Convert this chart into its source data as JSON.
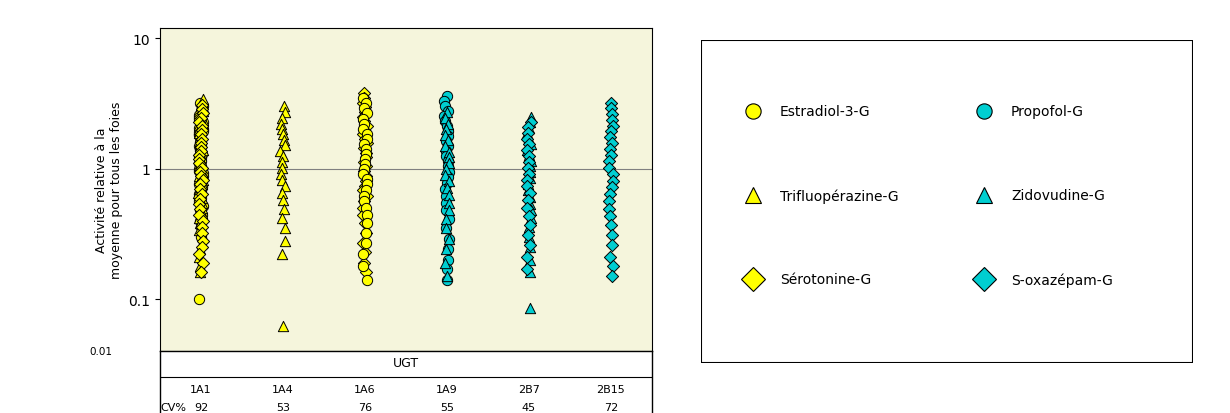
{
  "background_color": "#F5F5DC",
  "ylabel": "Activité relative à la\nmoyenne pour tous les foies",
  "ylim": [
    0.04,
    12
  ],
  "ugt_labels": [
    "1A1",
    "1A4",
    "1A6",
    "1A9",
    "2B7",
    "2B15"
  ],
  "cv_values": [
    92,
    53,
    76,
    55,
    45,
    72
  ],
  "x_positions": [
    1,
    2,
    3,
    4,
    5,
    6
  ],
  "hline_y": 1.0,
  "col1_yellow_circle": [
    3.2,
    3.05,
    2.9,
    2.75,
    2.6,
    2.5,
    2.4,
    2.3,
    2.2,
    2.1,
    2.05,
    2.0,
    1.95,
    1.9,
    1.85,
    1.8,
    1.75,
    1.7,
    1.65,
    1.6,
    1.55,
    1.5,
    1.45,
    1.4,
    1.35,
    1.3,
    1.25,
    1.2,
    1.15,
    1.1,
    1.05,
    1.0,
    0.96,
    0.92,
    0.88,
    0.84,
    0.8,
    0.76,
    0.72,
    0.68,
    0.64,
    0.6,
    0.56,
    0.52,
    0.48,
    0.44,
    0.4,
    0.36,
    0.3,
    0.1
  ],
  "col1_yellow_tri": [
    3.4,
    3.15,
    2.95,
    2.75,
    2.55,
    2.35,
    2.18,
    2.02,
    1.88,
    1.75,
    1.62,
    1.5,
    1.4,
    1.3,
    1.2,
    1.11,
    1.03,
    0.95,
    0.88,
    0.82,
    0.76,
    0.7,
    0.65,
    0.6,
    0.55,
    0.5,
    0.46,
    0.42,
    0.38,
    0.34,
    0.3,
    0.27,
    0.24,
    0.21,
    0.18,
    0.16
  ],
  "col1_yellow_dia": [
    3.1,
    2.85,
    2.65,
    2.45,
    2.28,
    2.12,
    1.97,
    1.83,
    1.7,
    1.58,
    1.47,
    1.37,
    1.27,
    1.18,
    1.1,
    1.02,
    0.95,
    0.88,
    0.82,
    0.76,
    0.7,
    0.64,
    0.59,
    0.54,
    0.49,
    0.44,
    0.4,
    0.36,
    0.32,
    0.28,
    0.25,
    0.22,
    0.19,
    0.16
  ],
  "col2_yellow_tri": [
    3.0,
    2.7,
    2.45,
    2.22,
    2.02,
    1.83,
    1.66,
    1.51,
    1.37,
    1.24,
    1.12,
    1.01,
    0.91,
    0.82,
    0.73,
    0.65,
    0.57,
    0.49,
    0.42,
    0.35,
    0.28,
    0.22,
    0.062
  ],
  "col3_yellow_dia": [
    3.8,
    3.5,
    3.2,
    2.95,
    2.72,
    2.51,
    2.32,
    2.14,
    1.98,
    1.83,
    1.69,
    1.56,
    1.44,
    1.33,
    1.23,
    1.13,
    1.04,
    0.96,
    0.88,
    0.81,
    0.74,
    0.68,
    0.62,
    0.56,
    0.5,
    0.44,
    0.38,
    0.32,
    0.27,
    0.23,
    0.19,
    0.16
  ],
  "col3_yellow_circle": [
    3.5,
    3.2,
    2.9,
    2.65,
    2.42,
    2.21,
    2.02,
    1.85,
    1.69,
    1.55,
    1.42,
    1.3,
    1.19,
    1.09,
    1.0,
    0.91,
    0.83,
    0.76,
    0.69,
    0.62,
    0.56,
    0.5,
    0.44,
    0.38,
    0.32,
    0.27,
    0.22,
    0.18,
    0.14
  ],
  "col4_cyan_circle": [
    3.6,
    3.3,
    3.0,
    2.75,
    2.52,
    2.31,
    2.12,
    1.95,
    1.79,
    1.64,
    1.5,
    1.37,
    1.25,
    1.14,
    1.04,
    0.95,
    0.86,
    0.78,
    0.7,
    0.62,
    0.55,
    0.48,
    0.41,
    0.35,
    0.29,
    0.24,
    0.2,
    0.17,
    0.14
  ],
  "col4_cyan_tri": [
    2.7,
    2.45,
    2.22,
    2.01,
    1.82,
    1.65,
    1.49,
    1.35,
    1.22,
    1.1,
    0.99,
    0.89,
    0.8,
    0.71,
    0.63,
    0.55,
    0.48,
    0.41,
    0.35,
    0.29,
    0.24,
    0.19,
    0.15
  ],
  "col5_cyan_tri": [
    2.5,
    2.27,
    2.06,
    1.87,
    1.7,
    1.54,
    1.4,
    1.27,
    1.15,
    1.04,
    0.94,
    0.85,
    0.76,
    0.68,
    0.61,
    0.54,
    0.48,
    0.42,
    0.36,
    0.3,
    0.25,
    0.2,
    0.16,
    0.085
  ],
  "col5_cyan_dia": [
    2.3,
    2.08,
    1.88,
    1.7,
    1.54,
    1.39,
    1.25,
    1.13,
    1.02,
    0.91,
    0.82,
    0.73,
    0.65,
    0.57,
    0.5,
    0.43,
    0.37,
    0.31,
    0.26,
    0.21,
    0.17
  ],
  "col6_cyan_dia": [
    3.2,
    2.9,
    2.62,
    2.37,
    2.14,
    1.93,
    1.74,
    1.57,
    1.41,
    1.27,
    1.14,
    1.02,
    0.91,
    0.81,
    0.72,
    0.64,
    0.56,
    0.49,
    0.43,
    0.37,
    0.31,
    0.26,
    0.21,
    0.18,
    0.15
  ],
  "yellow": "#FFFF00",
  "cyan": "#00CED1",
  "edge": "#000000",
  "legend_entries": [
    {
      "label": "Estradiol-3-G",
      "color": "#FFFF00",
      "marker": "o",
      "col": 0,
      "row": 0
    },
    {
      "label": "Propofol-G",
      "color": "#00CED1",
      "marker": "o",
      "col": 1,
      "row": 0
    },
    {
      "label": "Trifluopérazine-G",
      "color": "#FFFF00",
      "marker": "^",
      "col": 0,
      "row": 1
    },
    {
      "label": "Zidovudine-G",
      "color": "#00CED1",
      "marker": "^",
      "col": 1,
      "row": 1
    },
    {
      "label": "Sérotonine-G",
      "color": "#FFFF00",
      "marker": "D",
      "col": 0,
      "row": 2
    },
    {
      "label": "S-oxazépam-G",
      "color": "#00CED1",
      "marker": "D",
      "col": 1,
      "row": 2
    }
  ]
}
